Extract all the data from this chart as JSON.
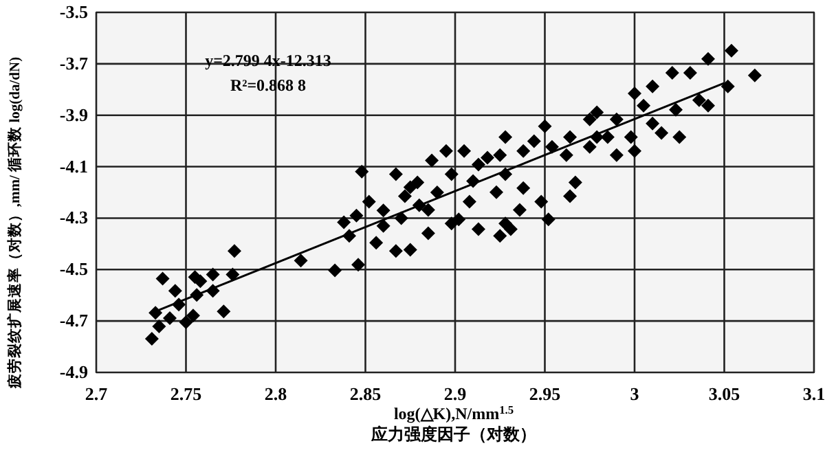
{
  "chart_data": {
    "type": "scatter",
    "xlabel": "log(△K),N/mm$^{1.5}$\n应力强度因子（对数）",
    "ylabel": "疲劳裂纹扩展速率（对数）,mm/ 循环数 log(da/dN)",
    "xlim": [
      2.7,
      3.1
    ],
    "xticks": [
      2.7,
      2.75,
      2.8,
      2.85,
      2.9,
      2.95,
      3,
      3.05,
      3.1
    ],
    "ylim": [
      -4.9,
      -3.5
    ],
    "yticks": [
      -4.9,
      -4.7,
      -4.5,
      -4.3,
      -4.1,
      -3.9,
      -3.7,
      -3.5
    ],
    "grid": true,
    "marker": "diamond",
    "annotations": [
      "y=2.799 4x-12.313",
      "R²=0.868 8"
    ],
    "series": [
      {
        "color": "#000000",
        "x": [
          2.731,
          2.733,
          2.737,
          2.735,
          2.744,
          2.741,
          2.746,
          2.75,
          2.755,
          2.754,
          2.756,
          2.758,
          2.765,
          2.765,
          2.771,
          2.776,
          2.777,
          2.814,
          2.833,
          2.846,
          2.841,
          2.856,
          2.867,
          2.875,
          3.054,
          3.067,
          3.041,
          3.031,
          3.021,
          3.01,
          3.0,
          3.005,
          3.023,
          3.041,
          3.052,
          3.025,
          3.01,
          2.998,
          2.979,
          2.975,
          2.99,
          2.985,
          2.99,
          2.975,
          2.964,
          2.962,
          2.95,
          2.954,
          2.944,
          2.938,
          2.928,
          2.925,
          2.918,
          2.913,
          2.905,
          2.895,
          2.887,
          2.898,
          2.91,
          2.928,
          2.938,
          2.967,
          2.964,
          2.948,
          2.936,
          2.923,
          2.908,
          2.879,
          2.885,
          2.928,
          2.902,
          2.952,
          2.979,
          3.0,
          3.015,
          3.036,
          2.848,
          2.867,
          2.852,
          2.838,
          2.872,
          2.885,
          2.898,
          2.925,
          2.931,
          2.913,
          2.86,
          2.87,
          2.88,
          2.86,
          2.845,
          2.89,
          2.875
        ],
        "values": [
          -4.769,
          -4.668,
          -4.535,
          -4.721,
          -4.583,
          -4.689,
          -4.636,
          -4.705,
          -4.529,
          -4.679,
          -4.599,
          -4.545,
          -4.519,
          -4.583,
          -4.663,
          -4.519,
          -4.428,
          -4.465,
          -4.503,
          -4.481,
          -4.369,
          -4.396,
          -4.428,
          -4.423,
          -3.649,
          -3.745,
          -3.681,
          -3.735,
          -3.735,
          -3.788,
          -3.815,
          -3.863,
          -3.879,
          -3.863,
          -3.788,
          -3.985,
          -3.932,
          -3.985,
          -3.889,
          -3.916,
          -3.916,
          -3.985,
          -4.055,
          -4.023,
          -3.985,
          -4.055,
          -3.943,
          -4.023,
          -4.001,
          -4.039,
          -3.985,
          -4.055,
          -4.065,
          -4.092,
          -4.039,
          -4.039,
          -4.076,
          -4.129,
          -4.156,
          -4.129,
          -4.183,
          -4.161,
          -4.215,
          -4.236,
          -4.268,
          -4.199,
          -4.236,
          -4.161,
          -4.268,
          -4.321,
          -4.305,
          -4.305,
          -3.985,
          -4.039,
          -3.969,
          -3.841,
          -4.119,
          -4.129,
          -4.236,
          -4.316,
          -4.215,
          -4.359,
          -4.321,
          -4.369,
          -4.343,
          -4.343,
          -4.27,
          -4.3,
          -4.25,
          -4.33,
          -4.29,
          -4.2,
          -4.18
        ]
      },
      {
        "type": "line",
        "color": "#000000",
        "marker": "none",
        "x": [
          2.735,
          3.05
        ],
        "values": [
          -4.657,
          -3.775
        ]
      }
    ]
  }
}
